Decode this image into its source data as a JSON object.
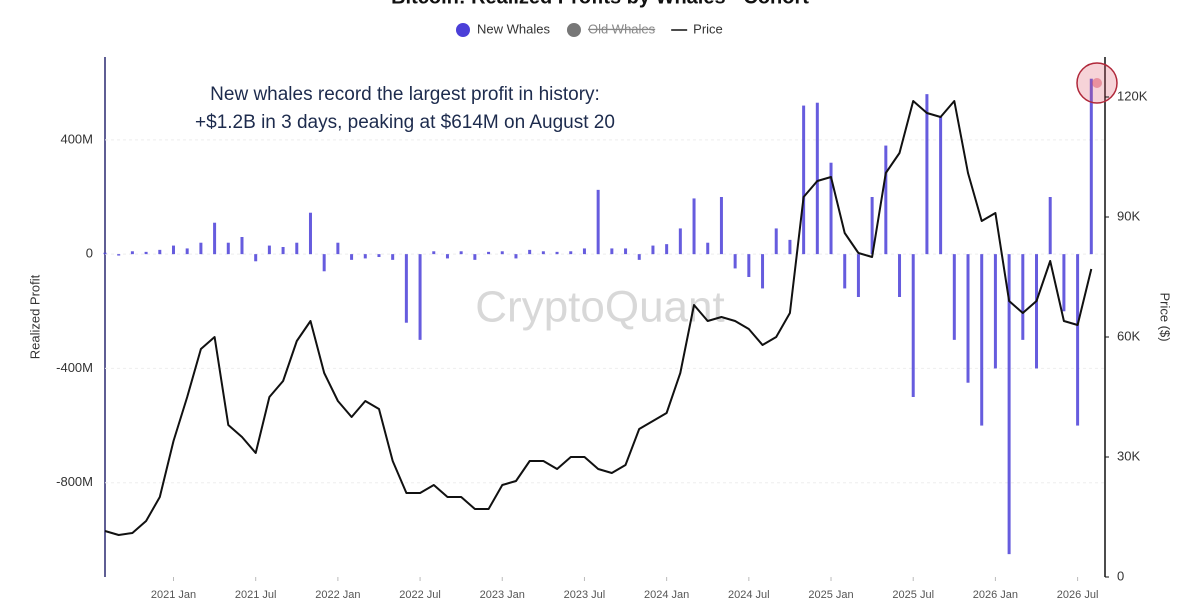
{
  "chart_data": {
    "type": "bar-line",
    "title": "Bitcoin: Realized Profits by Whales - Cohort",
    "annotation": [
      "New whales record the largest profit in history:",
      "+$1.2B in 3 days, peaking at $614M on August 20"
    ],
    "watermark": "CryptoQuant",
    "y_label": "Realized Profit",
    "y2_label": "Price ($)",
    "xlim": [
      "2020 Aug",
      "2026 Sep"
    ],
    "xticks": [
      "2021 Jan",
      "2021 Jul",
      "2022 Jan",
      "2022 Jul",
      "2023 Jan",
      "2023 Jul",
      "2024 Jan",
      "2024 Jul",
      "2025 Jan",
      "2025 Jul",
      "2026 Jan",
      "2026 Jul"
    ],
    "ylim": [
      -1130,
      690
    ],
    "yticks": [
      {
        "value": 400,
        "label": "400M"
      },
      0,
      {
        "value": -400,
        "label": "-400M"
      },
      {
        "value": -800,
        "label": "-800M"
      }
    ],
    "y2lim": [
      0,
      130000
    ],
    "y2ticks": [
      0,
      {
        "value": 30000,
        "label": "30K"
      },
      {
        "value": 60000,
        "label": "60K"
      },
      {
        "value": 90000,
        "label": "90K"
      },
      {
        "value": 120000,
        "label": "120K"
      }
    ],
    "grid": true,
    "series": [
      {
        "name": "New Whales",
        "color": "#4b3fd8",
        "kind": "bar",
        "x": [
          "2020 Aug",
          "2020 Sep",
          "2020 Oct",
          "2020 Nov",
          "2020 Dec",
          "2021 Jan",
          "2021 Feb",
          "2021 Mar",
          "2021 Apr",
          "2021 May",
          "2021 Jun",
          "2021 Jul",
          "2021 Aug",
          "2021 Sep",
          "2021 Oct",
          "2021 Nov",
          "2021 Dec",
          "2022 Jan",
          "2022 Feb",
          "2022 Mar",
          "2022 Apr",
          "2022 May",
          "2022 Jun",
          "2022 Jul",
          "2022 Aug",
          "2022 Sep",
          "2022 Oct",
          "2022 Nov",
          "2022 Dec",
          "2023 Jan",
          "2023 Feb",
          "2023 Mar",
          "2023 Apr",
          "2023 May",
          "2023 Jun",
          "2023 Jul",
          "2023 Aug",
          "2023 Sep",
          "2023 Oct",
          "2023 Nov",
          "2023 Dec",
          "2024 Jan",
          "2024 Feb",
          "2024 Mar",
          "2024 Apr",
          "2024 May",
          "2024 Jun",
          "2024 Jul",
          "2024 Aug",
          "2024 Sep",
          "2024 Oct",
          "2024 Nov",
          "2024 Dec",
          "2025 Jan",
          "2025 Feb",
          "2025 Mar",
          "2025 Apr",
          "2025 May",
          "2025 Jun",
          "2025 Jul",
          "2025 Aug",
          "2025 Sep",
          "2025 Oct",
          "2025 Nov",
          "2025 Dec",
          "2026 Jan",
          "2026 Feb",
          "2026 Mar",
          "2026 Apr",
          "2026 May",
          "2026 Jun",
          "2026 Jul",
          "2026 Aug"
        ],
        "values": [
          5,
          -5,
          10,
          8,
          15,
          30,
          20,
          40,
          110,
          40,
          60,
          -25,
          30,
          25,
          40,
          145,
          -60,
          40,
          -20,
          -15,
          -10,
          -20,
          -240,
          -300,
          10,
          -15,
          10,
          -20,
          8,
          10,
          -15,
          15,
          10,
          8,
          10,
          20,
          225,
          20,
          20,
          -20,
          30,
          35,
          90,
          195,
          40,
          200,
          -50,
          -80,
          -120,
          90,
          50,
          520,
          530,
          320,
          -120,
          -150,
          200,
          380,
          -150,
          -500,
          560,
          480,
          -300,
          -450,
          -600,
          -400,
          -1050,
          -300,
          -400,
          200,
          -200,
          -600,
          614
        ]
      },
      {
        "name": "Old Whales",
        "color": "#777777",
        "kind": "bar",
        "hidden": true,
        "x": [],
        "values": []
      },
      {
        "name": "Price",
        "color": "#111111",
        "kind": "line",
        "axis": "y2",
        "x": [
          "2020 Aug",
          "2020 Sep",
          "2020 Oct",
          "2020 Nov",
          "2020 Dec",
          "2021 Jan",
          "2021 Feb",
          "2021 Mar",
          "2021 Apr",
          "2021 May",
          "2021 Jun",
          "2021 Jul",
          "2021 Aug",
          "2021 Sep",
          "2021 Oct",
          "2021 Nov",
          "2021 Dec",
          "2022 Jan",
          "2022 Feb",
          "2022 Mar",
          "2022 Apr",
          "2022 May",
          "2022 Jun",
          "2022 Jul",
          "2022 Aug",
          "2022 Sep",
          "2022 Oct",
          "2022 Nov",
          "2022 Dec",
          "2023 Jan",
          "2023 Feb",
          "2023 Mar",
          "2023 Apr",
          "2023 May",
          "2023 Jun",
          "2023 Jul",
          "2023 Aug",
          "2023 Sep",
          "2023 Oct",
          "2023 Nov",
          "2023 Dec",
          "2024 Jan",
          "2024 Feb",
          "2024 Mar",
          "2024 Apr",
          "2024 May",
          "2024 Jun",
          "2024 Jul",
          "2024 Aug",
          "2024 Sep",
          "2024 Oct",
          "2024 Nov",
          "2024 Dec",
          "2025 Jan",
          "2025 Feb",
          "2025 Mar",
          "2025 Apr",
          "2025 May",
          "2025 Jun",
          "2025 Jul",
          "2025 Aug",
          "2025 Sep",
          "2025 Oct",
          "2025 Nov",
          "2025 Dec",
          "2026 Jan",
          "2026 Feb",
          "2026 Mar",
          "2026 Apr",
          "2026 May",
          "2026 Jun",
          "2026 Jul",
          "2026 Aug"
        ],
        "values": [
          11500,
          10500,
          11000,
          14000,
          20000,
          34000,
          45000,
          57000,
          60000,
          38000,
          35000,
          31000,
          45000,
          49000,
          59000,
          64000,
          51000,
          44000,
          40000,
          44000,
          42000,
          29000,
          21000,
          21000,
          23000,
          20000,
          20000,
          17000,
          17000,
          23000,
          24000,
          29000,
          29000,
          27000,
          30000,
          30000,
          27000,
          26000,
          28000,
          37000,
          39000,
          41000,
          51000,
          68000,
          64000,
          65000,
          64000,
          62000,
          58000,
          60000,
          66000,
          95000,
          99000,
          100000,
          86000,
          81000,
          80000,
          101000,
          106000,
          119000,
          116000,
          115000,
          119000,
          101000,
          89000,
          91000,
          69000,
          66000,
          69000,
          79000,
          64000,
          63000,
          77000
        ]
      }
    ]
  }
}
